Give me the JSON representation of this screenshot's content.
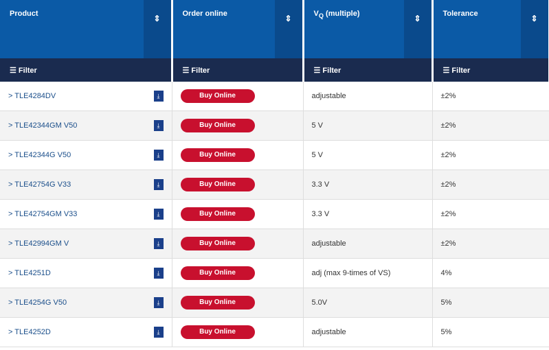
{
  "table": {
    "columns": [
      {
        "label": "Product"
      },
      {
        "label": "Order online"
      },
      {
        "label": "V",
        "sub": "Q",
        "rest": " (multiple)"
      },
      {
        "label": "Tolerance"
      }
    ],
    "filter_label": "Filter",
    "buy_label": "Buy Online",
    "rows": [
      {
        "product": "TLE4284DV",
        "output": "adjustable",
        "tolerance": "±2%"
      },
      {
        "product": "TLE42344GM V50",
        "output": "5 V",
        "tolerance": "±2%"
      },
      {
        "product": "TLE42344G V50",
        "output": "5 V",
        "tolerance": "±2%"
      },
      {
        "product": "TLE42754G V33",
        "output": "3.3 V",
        "tolerance": "±2%"
      },
      {
        "product": "TLE42754GM V33",
        "output": "3.3 V",
        "tolerance": "±2%"
      },
      {
        "product": "TLE42994GM V",
        "output": "adjustable",
        "tolerance": "±2%"
      },
      {
        "product": "TLE4251D",
        "output": "adj (max 9-times of VS)",
        "tolerance": "4%"
      },
      {
        "product": "TLE4254G V50",
        "output": "5.0V",
        "tolerance": "5%"
      },
      {
        "product": "TLE4252D",
        "output": "adjustable",
        "tolerance": "5%"
      }
    ]
  }
}
